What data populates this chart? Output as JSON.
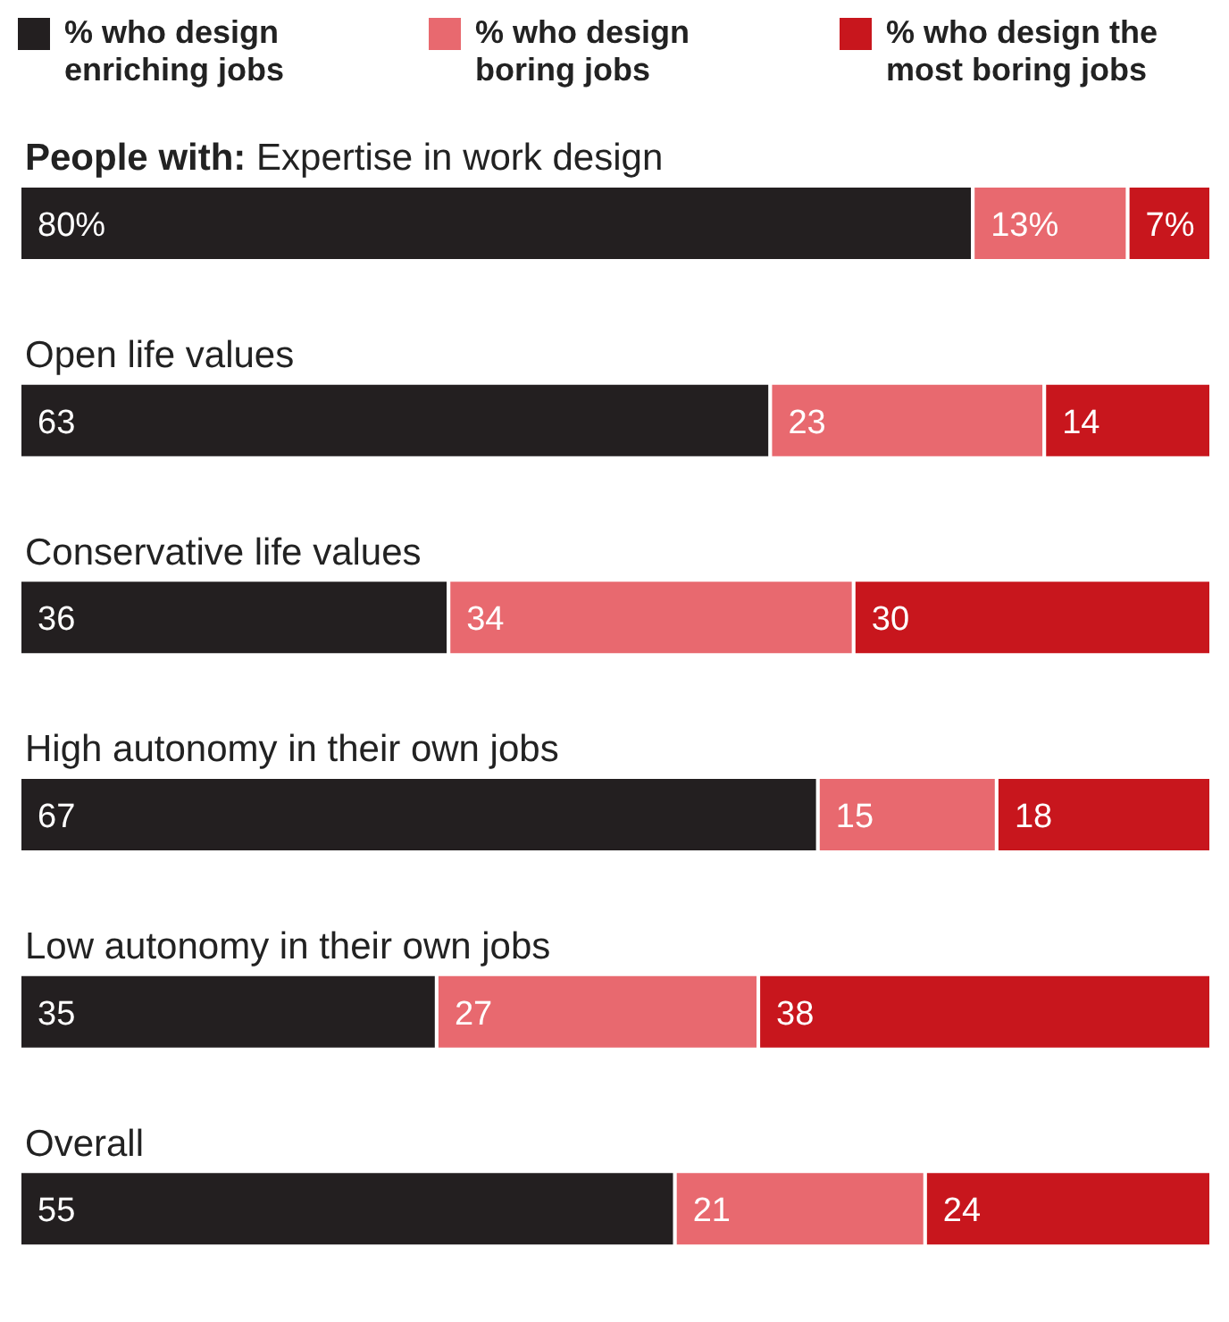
{
  "chart_data": {
    "type": "bar",
    "orientation": "horizontal",
    "stacked": true,
    "legend": "top",
    "categories": [
      "People with: Expertise in work design",
      "Open life values",
      "Conservative life values",
      "High autonomy in their own jobs",
      "Low autonomy in their own jobs",
      "Overall"
    ],
    "series": [
      {
        "name": "% who design enriching jobs",
        "color": "#231f20",
        "values": [
          80,
          63,
          36,
          67,
          35,
          55
        ],
        "value_labels": [
          "80%",
          "63",
          "36",
          "67",
          "35",
          "55"
        ]
      },
      {
        "name": "% who design boring jobs",
        "color": "#e8696f",
        "values": [
          13,
          23,
          34,
          15,
          27,
          21
        ],
        "value_labels": [
          "13%",
          "23",
          "34",
          "15",
          "27",
          "21"
        ]
      },
      {
        "name": "% who design the most boring jobs",
        "color": "#c8161d",
        "values": [
          7,
          14,
          30,
          18,
          38,
          24
        ],
        "value_labels": [
          "7%",
          "14",
          "30",
          "18",
          "38",
          "24"
        ]
      }
    ]
  }
}
